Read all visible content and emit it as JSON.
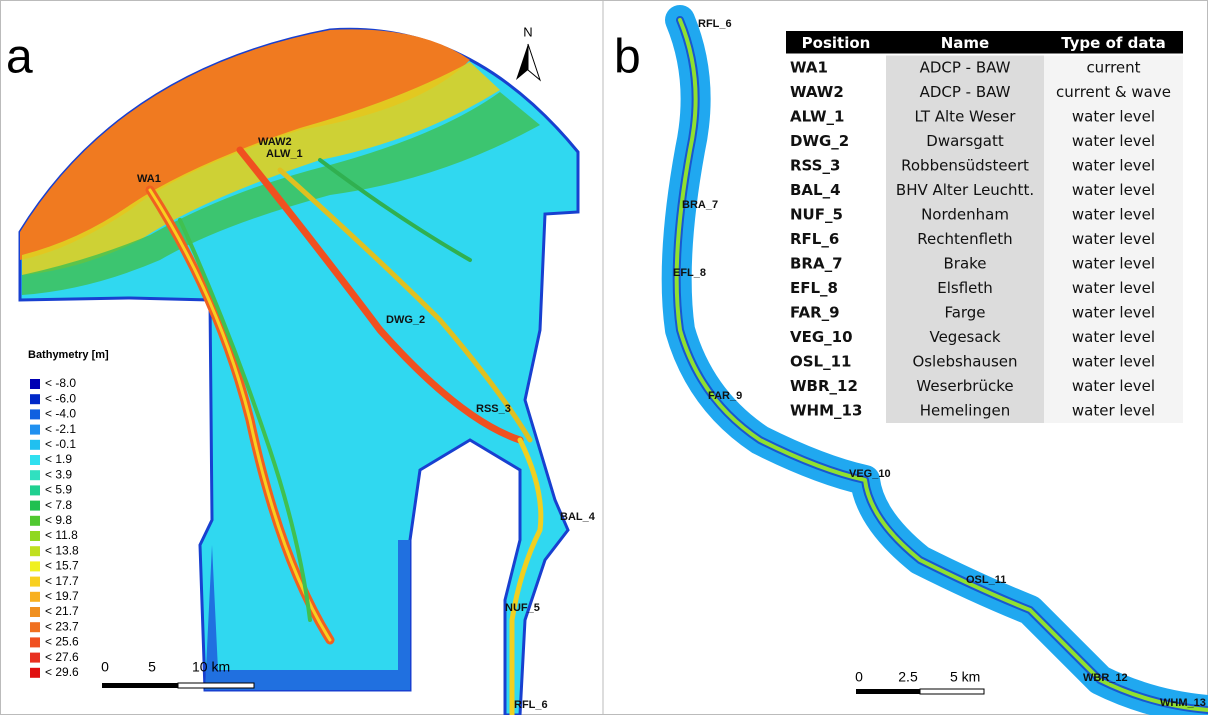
{
  "panel_a": {
    "label": "a",
    "north": "N",
    "stations": [
      "WAW2",
      "ALW_1",
      "WA1",
      "DWG_2",
      "RSS_3",
      "BAL_4",
      "NUF_5",
      "RFL_6"
    ],
    "legend": {
      "title": "Bathymetry [m]",
      "items": [
        {
          "label": "< -8.0",
          "color": "#0000b4"
        },
        {
          "label": "< -6.0",
          "color": "#0028c8"
        },
        {
          "label": "< -4.0",
          "color": "#1060e0"
        },
        {
          "label": "< -2.1",
          "color": "#2090f0"
        },
        {
          "label": "< -0.1",
          "color": "#20c0f0"
        },
        {
          "label": "< 1.9",
          "color": "#30e0f0"
        },
        {
          "label": "< 3.9",
          "color": "#30e0c0"
        },
        {
          "label": "< 5.9",
          "color": "#20d090"
        },
        {
          "label": "< 7.8",
          "color": "#20c050"
        },
        {
          "label": "< 9.8",
          "color": "#50c830"
        },
        {
          "label": "< 11.8",
          "color": "#90d820"
        },
        {
          "label": "< 13.8",
          "color": "#c0e020"
        },
        {
          "label": "< 15.7",
          "color": "#f0f020"
        },
        {
          "label": "< 17.7",
          "color": "#f8d020"
        },
        {
          "label": "< 19.7",
          "color": "#f8b020"
        },
        {
          "label": "< 21.7",
          "color": "#f09020"
        },
        {
          "label": "< 23.7",
          "color": "#f07020"
        },
        {
          "label": "< 25.6",
          "color": "#f05020"
        },
        {
          "label": "< 27.6",
          "color": "#e83020"
        },
        {
          "label": "< 29.6",
          "color": "#e01010"
        }
      ]
    },
    "scale": [
      "0",
      "5",
      "10 km"
    ]
  },
  "panel_b": {
    "label": "b",
    "stations": [
      "RFL_6",
      "BRA_7",
      "EFL_8",
      "FAR_9",
      "VEG_10",
      "OSL_11",
      "WBR_12",
      "WHM_13"
    ],
    "scale": [
      "0",
      "2.5",
      "5 km"
    ],
    "table": {
      "header": [
        "Position",
        "Name",
        "Type of data"
      ],
      "rows": [
        [
          "WA1",
          "ADCP - BAW",
          "current"
        ],
        [
          "WAW2",
          "ADCP - BAW",
          "current & wave"
        ],
        [
          "ALW_1",
          "LT Alte Weser",
          "water level"
        ],
        [
          "DWG_2",
          "Dwarsgatt",
          "water level"
        ],
        [
          "RSS_3",
          "Robbensüdsteert",
          "water level"
        ],
        [
          "BAL_4",
          "BHV Alter Leuchtt.",
          "water level"
        ],
        [
          "NUF_5",
          "Nordenham",
          "water level"
        ],
        [
          "RFL_6",
          "Rechtenfleth",
          "water level"
        ],
        [
          "BRA_7",
          "Brake",
          "water level"
        ],
        [
          "EFL_8",
          "Elsfleth",
          "water level"
        ],
        [
          "FAR_9",
          "Farge",
          "water level"
        ],
        [
          "VEG_10",
          "Vegesack",
          "water level"
        ],
        [
          "OSL_11",
          "Oslebshausen",
          "water level"
        ],
        [
          "WBR_12",
          "Weserbrücke",
          "water level"
        ],
        [
          "WHM_13",
          "Hemelingen",
          "water level"
        ]
      ]
    }
  }
}
